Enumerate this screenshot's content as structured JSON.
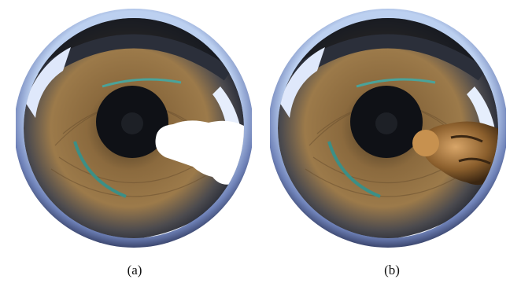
{
  "figure": {
    "panels": [
      {
        "id": "a",
        "caption": "(a)"
      },
      {
        "id": "b",
        "caption": "(b)"
      }
    ]
  },
  "colors": {
    "lens_rim": "#6f82b8",
    "floor_wood": "#8b6a3e",
    "dark_center": "#0f1116",
    "mask_white": "#ffffff",
    "person_orange": "#b07a3a",
    "orange_marker": "#e08a2a"
  }
}
